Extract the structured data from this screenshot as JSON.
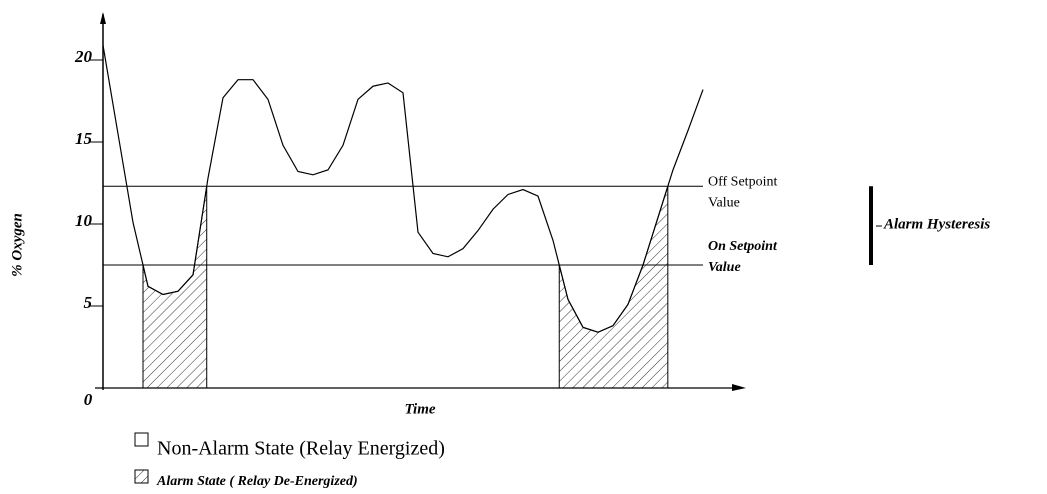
{
  "chart_data": {
    "type": "line",
    "y_label": "% Oxygen",
    "x_label": "Time",
    "x_origin_label": "0",
    "ylim": [
      0,
      20
    ],
    "yticks": [
      5,
      10,
      15,
      20
    ],
    "color": "#000000",
    "categories": [
      null,
      null,
      null,
      null,
      null,
      null,
      null,
      null,
      null,
      null,
      null,
      null,
      null,
      null,
      null,
      null,
      null,
      null,
      null,
      null,
      null,
      null,
      null,
      null,
      null,
      null,
      null,
      null,
      null,
      null,
      null,
      null,
      null,
      null,
      null,
      null,
      null,
      null,
      null,
      null,
      null
    ],
    "values": [
      20.9,
      15.5,
      10.1,
      6.2,
      5.7,
      5.9,
      6.9,
      12.8,
      17.7,
      18.8,
      18.8,
      17.6,
      14.8,
      13.2,
      13.0,
      13.3,
      14.8,
      17.6,
      18.4,
      18.6,
      18.0,
      9.5,
      8.2,
      8.0,
      8.5,
      9.6,
      10.9,
      11.8,
      12.1,
      11.7,
      9.0,
      5.4,
      3.7,
      3.4,
      3.8,
      5.1,
      7.5,
      10.4,
      13.3,
      15.7,
      18.2
    ],
    "setpoints": [
      {
        "label_lines": [
          "Off Setpoint",
          "Value"
        ],
        "value": 12.3
      },
      {
        "label_lines": [
          "On Setpoint",
          "Value"
        ],
        "value": 7.5
      }
    ],
    "hysteresis_label": "Alarm Hysteresis",
    "legend": [
      "Non-Alarm State (Relay Energized)",
      "Alarm State ( Relay De-Energized)"
    ]
  }
}
